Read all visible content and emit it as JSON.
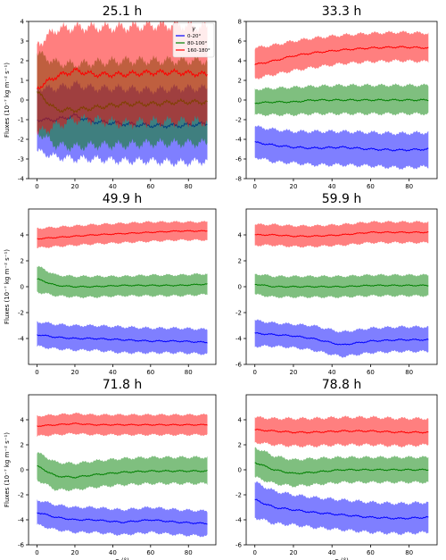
{
  "figure": {
    "shared_ylabel": "Fluxes (10⁻⁷ kg m⁻² s⁻¹)",
    "shared_xlabel": "α (°)"
  },
  "chart_data": [
    {
      "type": "area",
      "title": "25.1 h",
      "xlim": [
        0,
        90
      ],
      "ylim": [
        -4,
        4
      ],
      "xticks": [
        0,
        20,
        40,
        60,
        80
      ],
      "yticks": [
        -4,
        -3,
        -2,
        -1,
        0,
        1,
        2,
        3,
        4
      ],
      "legend": {
        "title": "γ",
        "placement": "top-right"
      },
      "series": [
        {
          "name": "0-20°",
          "color": "#0000ff",
          "x": [
            0,
            10,
            20,
            30,
            45,
            60,
            75,
            90
          ],
          "mean": [
            -1.0,
            -1.0,
            -0.8,
            -1.1,
            -1.2,
            -1.3,
            -1.3,
            -1.2
          ],
          "lower": [
            -2.6,
            -2.9,
            -3.0,
            -3.0,
            -3.1,
            -3.1,
            -3.2,
            -3.1
          ],
          "upper": [
            0.6,
            0.6,
            0.8,
            0.6,
            0.6,
            0.5,
            0.6,
            0.6
          ]
        },
        {
          "name": "80-100°",
          "color": "#008000",
          "x": [
            0,
            10,
            20,
            30,
            45,
            60,
            75,
            90
          ],
          "mean": [
            0.4,
            -0.5,
            -0.5,
            -0.4,
            -0.2,
            -0.2,
            -0.1,
            -0.1
          ],
          "lower": [
            -1.6,
            -2.3,
            -2.4,
            -2.3,
            -2.3,
            -2.2,
            -2.2,
            -2.2
          ],
          "upper": [
            2.4,
            1.9,
            1.8,
            1.9,
            2.0,
            2.0,
            2.0,
            2.0
          ]
        },
        {
          "name": "160-180°",
          "color": "#ff0000",
          "x": [
            0,
            10,
            20,
            30,
            45,
            60,
            75,
            90
          ],
          "mean": [
            0.6,
            1.2,
            1.5,
            1.3,
            1.3,
            1.4,
            1.4,
            1.3
          ],
          "lower": [
            -1.7,
            -1.3,
            -1.0,
            -1.0,
            -1.2,
            -1.1,
            -1.1,
            -1.1
          ],
          "upper": [
            2.8,
            3.6,
            3.7,
            3.7,
            3.7,
            3.8,
            3.8,
            3.7
          ]
        }
      ]
    },
    {
      "type": "area",
      "title": "33.3 h",
      "xlim": [
        0,
        90
      ],
      "ylim": [
        -8,
        8
      ],
      "xticks": [
        0,
        20,
        40,
        60,
        80
      ],
      "yticks": [
        -8,
        -6,
        -4,
        -2,
        0,
        2,
        4,
        6,
        8
      ],
      "series": [
        {
          "name": "0-20°",
          "color": "#0000ff",
          "x": [
            0,
            10,
            20,
            30,
            45,
            60,
            75,
            90
          ],
          "mean": [
            -4.3,
            -4.6,
            -4.8,
            -4.9,
            -4.8,
            -5.0,
            -5.1,
            -5.0
          ],
          "lower": [
            -5.8,
            -6.3,
            -6.4,
            -6.6,
            -6.6,
            -6.7,
            -6.9,
            -6.8
          ],
          "upper": [
            -2.7,
            -3.0,
            -3.2,
            -3.2,
            -3.2,
            -3.3,
            -3.4,
            -3.3
          ]
        },
        {
          "name": "80-100°",
          "color": "#008000",
          "x": [
            0,
            10,
            20,
            30,
            45,
            60,
            75,
            90
          ],
          "mean": [
            -0.3,
            -0.2,
            -0.2,
            0.0,
            0.0,
            0.0,
            0.0,
            0.0
          ],
          "lower": [
            -1.5,
            -1.5,
            -1.5,
            -1.4,
            -1.4,
            -1.4,
            -1.4,
            -1.4
          ],
          "upper": [
            1.1,
            1.2,
            1.3,
            1.4,
            1.5,
            1.5,
            1.5,
            1.5
          ]
        },
        {
          "name": "160-180°",
          "color": "#ff0000",
          "x": [
            0,
            10,
            20,
            30,
            45,
            60,
            75,
            90
          ],
          "mean": [
            3.6,
            4.0,
            4.5,
            4.8,
            5.1,
            5.3,
            5.4,
            5.3
          ],
          "lower": [
            2.2,
            2.6,
            3.0,
            3.3,
            3.7,
            3.9,
            4.0,
            3.9
          ],
          "upper": [
            5.3,
            5.6,
            6.0,
            6.3,
            6.6,
            6.8,
            6.9,
            6.8
          ]
        }
      ]
    },
    {
      "type": "area",
      "title": "49.9 h",
      "xlim": [
        0,
        90
      ],
      "ylim": [
        -6,
        6
      ],
      "xticks": [
        0,
        20,
        40,
        60,
        80
      ],
      "yticks": [
        -4,
        -2,
        0,
        2,
        4
      ],
      "series": [
        {
          "name": "0-20°",
          "color": "#0000ff",
          "x": [
            0,
            10,
            20,
            30,
            45,
            60,
            75,
            90
          ],
          "mean": [
            -3.7,
            -3.9,
            -4.0,
            -4.0,
            -4.1,
            -4.2,
            -4.2,
            -4.3
          ],
          "lower": [
            -4.6,
            -4.8,
            -4.9,
            -4.9,
            -5.1,
            -5.1,
            -5.1,
            -5.2
          ],
          "upper": [
            -2.7,
            -2.9,
            -3.0,
            -3.0,
            -3.1,
            -3.2,
            -3.2,
            -3.3
          ]
        },
        {
          "name": "80-100°",
          "color": "#008000",
          "x": [
            0,
            10,
            20,
            30,
            45,
            60,
            75,
            90
          ],
          "mean": [
            0.6,
            0.1,
            0.0,
            0.0,
            0.1,
            0.1,
            0.1,
            0.2
          ],
          "lower": [
            -0.4,
            -0.7,
            -0.8,
            -0.8,
            -0.7,
            -0.7,
            -0.7,
            -0.6
          ],
          "upper": [
            1.6,
            0.9,
            0.8,
            0.8,
            0.8,
            0.9,
            0.9,
            1.0
          ]
        },
        {
          "name": "160-180°",
          "color": "#ff0000",
          "x": [
            0,
            10,
            20,
            30,
            45,
            60,
            75,
            90
          ],
          "mean": [
            3.7,
            3.8,
            3.9,
            4.0,
            4.1,
            4.2,
            4.3,
            4.3
          ],
          "lower": [
            3.0,
            3.1,
            3.2,
            3.3,
            3.4,
            3.5,
            3.6,
            3.6
          ],
          "upper": [
            4.5,
            4.6,
            4.7,
            4.8,
            4.9,
            5.0,
            5.0,
            5.0
          ]
        }
      ]
    },
    {
      "type": "area",
      "title": "59.9 h",
      "xlim": [
        0,
        90
      ],
      "ylim": [
        -6,
        6
      ],
      "xticks": [
        0,
        20,
        40,
        60,
        80
      ],
      "yticks": [
        -6,
        -4,
        -2,
        0,
        2,
        4
      ],
      "series": [
        {
          "name": "0-20°",
          "color": "#0000ff",
          "x": [
            0,
            10,
            20,
            30,
            45,
            60,
            75,
            90
          ],
          "mean": [
            -3.6,
            -3.7,
            -3.8,
            -4.0,
            -4.5,
            -4.2,
            -4.1,
            -4.1
          ],
          "lower": [
            -4.6,
            -4.6,
            -4.7,
            -4.9,
            -5.4,
            -5.1,
            -5.0,
            -5.0
          ],
          "upper": [
            -2.6,
            -2.8,
            -2.9,
            -3.0,
            -3.5,
            -3.2,
            -3.1,
            -3.1
          ]
        },
        {
          "name": "80-100°",
          "color": "#008000",
          "x": [
            0,
            10,
            20,
            30,
            45,
            60,
            75,
            90
          ],
          "mean": [
            0.2,
            0.0,
            0.0,
            0.0,
            0.0,
            0.1,
            0.1,
            0.1
          ],
          "lower": [
            -0.6,
            -0.8,
            -0.8,
            -0.8,
            -0.8,
            -0.7,
            -0.7,
            -0.7
          ],
          "upper": [
            1.0,
            0.8,
            0.8,
            0.8,
            0.8,
            0.9,
            0.9,
            0.9
          ]
        },
        {
          "name": "160-180°",
          "color": "#ff0000",
          "x": [
            0,
            10,
            20,
            30,
            45,
            60,
            75,
            90
          ],
          "mean": [
            4.0,
            4.0,
            3.9,
            3.9,
            4.0,
            4.2,
            4.2,
            4.2
          ],
          "lower": [
            3.2,
            3.2,
            3.1,
            3.1,
            3.2,
            3.4,
            3.4,
            3.4
          ],
          "upper": [
            4.8,
            4.8,
            4.7,
            4.7,
            4.8,
            5.0,
            5.0,
            5.0
          ]
        }
      ]
    },
    {
      "type": "area",
      "title": "71.8 h",
      "xlim": [
        0,
        90
      ],
      "ylim": [
        -6,
        6
      ],
      "xticks": [
        0,
        20,
        40,
        60,
        80
      ],
      "yticks": [
        -6,
        -4,
        -2,
        0,
        2,
        4
      ],
      "series": [
        {
          "name": "0-20°",
          "color": "#0000ff",
          "x": [
            0,
            10,
            20,
            30,
            45,
            60,
            75,
            90
          ],
          "mean": [
            -3.4,
            -3.8,
            -4.0,
            -4.0,
            -4.2,
            -4.0,
            -4.2,
            -4.3
          ],
          "lower": [
            -4.4,
            -4.8,
            -5.0,
            -5.0,
            -5.2,
            -5.0,
            -5.2,
            -5.3
          ],
          "upper": [
            -2.4,
            -2.8,
            -3.0,
            -3.0,
            -3.2,
            -3.0,
            -3.2,
            -3.3
          ]
        },
        {
          "name": "80-100°",
          "color": "#008000",
          "x": [
            0,
            10,
            20,
            30,
            45,
            60,
            75,
            90
          ],
          "mean": [
            0.3,
            -0.5,
            -0.6,
            -0.4,
            -0.2,
            -0.1,
            -0.1,
            -0.1
          ],
          "lower": [
            -0.8,
            -1.6,
            -1.6,
            -1.4,
            -1.2,
            -1.1,
            -1.1,
            -1.1
          ],
          "upper": [
            1.4,
            0.6,
            0.5,
            0.7,
            0.9,
            1.0,
            1.0,
            1.0
          ]
        },
        {
          "name": "160-180°",
          "color": "#ff0000",
          "x": [
            0,
            10,
            20,
            30,
            45,
            60,
            75,
            90
          ],
          "mean": [
            3.5,
            3.6,
            3.7,
            3.6,
            3.6,
            3.6,
            3.6,
            3.6
          ],
          "lower": [
            2.7,
            2.8,
            2.9,
            2.8,
            2.8,
            2.8,
            2.8,
            2.8
          ],
          "upper": [
            4.3,
            4.4,
            4.5,
            4.4,
            4.4,
            4.4,
            4.4,
            4.4
          ]
        }
      ]
    },
    {
      "type": "area",
      "title": "78.8 h",
      "xlim": [
        0,
        90
      ],
      "ylim": [
        -6,
        6
      ],
      "xticks": [
        0,
        20,
        40,
        60,
        80
      ],
      "yticks": [
        -6,
        -4,
        -2,
        0,
        2,
        4
      ],
      "series": [
        {
          "name": "0-20°",
          "color": "#0000ff",
          "x": [
            0,
            10,
            20,
            30,
            45,
            60,
            75,
            90
          ],
          "mean": [
            -2.4,
            -3.0,
            -3.2,
            -3.4,
            -3.6,
            -3.8,
            -3.9,
            -3.8
          ],
          "lower": [
            -3.8,
            -4.3,
            -4.4,
            -4.6,
            -4.8,
            -5.0,
            -5.1,
            -5.0
          ],
          "upper": [
            -1.0,
            -1.7,
            -2.0,
            -2.2,
            -2.4,
            -2.6,
            -2.7,
            -2.6
          ]
        },
        {
          "name": "80-100°",
          "color": "#008000",
          "x": [
            0,
            10,
            20,
            30,
            45,
            60,
            75,
            90
          ],
          "mean": [
            0.6,
            0.0,
            -0.3,
            -0.2,
            0.0,
            0.0,
            0.0,
            0.0
          ],
          "lower": [
            -0.6,
            -1.1,
            -1.3,
            -1.2,
            -1.0,
            -1.0,
            -1.0,
            -1.0
          ],
          "upper": [
            1.8,
            1.1,
            0.8,
            0.9,
            1.0,
            1.0,
            1.0,
            1.0
          ]
        },
        {
          "name": "160-180°",
          "color": "#ff0000",
          "x": [
            0,
            10,
            20,
            30,
            45,
            60,
            75,
            90
          ],
          "mean": [
            3.2,
            3.1,
            3.0,
            3.0,
            3.1,
            3.1,
            3.0,
            3.0
          ],
          "lower": [
            2.2,
            2.0,
            1.9,
            1.9,
            2.0,
            2.0,
            1.9,
            2.0
          ],
          "upper": [
            4.2,
            4.1,
            4.1,
            4.1,
            4.2,
            4.2,
            4.1,
            4.1
          ]
        }
      ]
    }
  ]
}
